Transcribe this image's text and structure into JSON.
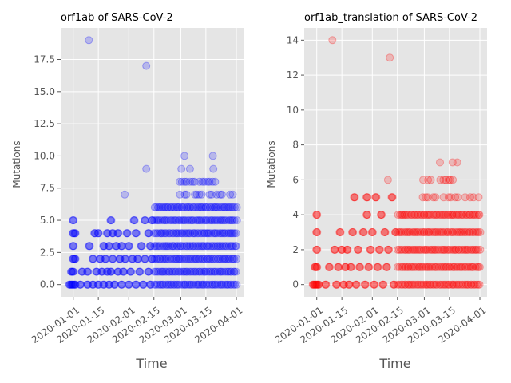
{
  "chart_data": [
    {
      "type": "scatter",
      "title": "orf1ab of SARS-CoV-2",
      "xlabel": "Time",
      "ylabel": "Mutations",
      "x_type": "date",
      "xlim": [
        "2019-12-25",
        "2020-04-05"
      ],
      "ylim": [
        -0.95,
        19.95
      ],
      "x_ticks": [
        "2020-01-01",
        "2020-01-15",
        "2020-02-01",
        "2020-02-15",
        "2020-03-01",
        "2020-03-15",
        "2020-04-01"
      ],
      "y_ticks": [
        0.0,
        2.5,
        5.0,
        7.5,
        10.0,
        12.5,
        15.0,
        17.5
      ],
      "y_tick_labels": [
        "0.0",
        "2.5",
        "5.0",
        "7.5",
        "10.0",
        "12.5",
        "15.0",
        "17.5"
      ],
      "grid": true,
      "marker_color": "#0000ff",
      "marker_alpha": 0.2,
      "points": [
        [
          "2019-12-30",
          0
        ],
        [
          "2019-12-31",
          0
        ],
        [
          "2020-01-01",
          0
        ],
        [
          "2020-01-02",
          0
        ],
        [
          "2019-12-31",
          1
        ],
        [
          "2020-01-01",
          1
        ],
        [
          "2020-01-01",
          2
        ],
        [
          "2020-01-02",
          2
        ],
        [
          "2020-01-01",
          3
        ],
        [
          "2020-01-01",
          4
        ],
        [
          "2020-01-02",
          4
        ],
        [
          "2020-01-01",
          5
        ],
        [
          "2020-01-05",
          0
        ],
        [
          "2020-01-06",
          1
        ],
        [
          "2020-01-09",
          1
        ],
        [
          "2020-01-09",
          0
        ],
        [
          "2020-01-10",
          3
        ],
        [
          "2020-01-10",
          19
        ],
        [
          "2020-01-12",
          0
        ],
        [
          "2020-01-12",
          2
        ],
        [
          "2020-01-13",
          4
        ],
        [
          "2020-01-14",
          1
        ],
        [
          "2020-01-15",
          0
        ],
        [
          "2020-01-15",
          4
        ],
        [
          "2020-01-16",
          2
        ],
        [
          "2020-01-17",
          1
        ],
        [
          "2020-01-18",
          0
        ],
        [
          "2020-01-18",
          3
        ],
        [
          "2020-01-19",
          2
        ],
        [
          "2020-01-20",
          1
        ],
        [
          "2020-01-20",
          4
        ],
        [
          "2020-01-21",
          0
        ],
        [
          "2020-01-21",
          3
        ],
        [
          "2020-01-22",
          1
        ],
        [
          "2020-01-22",
          5
        ],
        [
          "2020-01-23",
          2
        ],
        [
          "2020-01-23",
          4
        ],
        [
          "2020-01-24",
          0
        ],
        [
          "2020-01-25",
          3
        ],
        [
          "2020-01-26",
          1
        ],
        [
          "2020-01-26",
          4
        ],
        [
          "2020-01-27",
          2
        ],
        [
          "2020-01-28",
          0
        ],
        [
          "2020-01-28",
          3
        ],
        [
          "2020-01-29",
          1
        ],
        [
          "2020-01-30",
          7
        ],
        [
          "2020-01-30",
          2
        ],
        [
          "2020-01-31",
          4
        ],
        [
          "2020-02-01",
          0
        ],
        [
          "2020-02-01",
          3
        ],
        [
          "2020-02-02",
          1
        ],
        [
          "2020-02-03",
          2
        ],
        [
          "2020-02-04",
          5
        ],
        [
          "2020-02-05",
          0
        ],
        [
          "2020-02-05",
          4
        ],
        [
          "2020-02-06",
          2
        ],
        [
          "2020-02-07",
          1
        ],
        [
          "2020-02-08",
          3
        ],
        [
          "2020-02-09",
          0
        ],
        [
          "2020-02-10",
          5
        ],
        [
          "2020-02-10",
          2
        ],
        [
          "2020-02-11",
          17
        ],
        [
          "2020-02-11",
          9
        ],
        [
          "2020-02-12",
          4
        ],
        [
          "2020-02-12",
          1
        ],
        [
          "2020-02-13",
          0
        ],
        [
          "2020-02-13",
          3
        ],
        [
          "2020-02-14",
          5
        ],
        [
          "2020-02-14",
          2
        ]
      ],
      "dense_band": {
        "x_range": [
          "2020-02-15",
          "2020-04-01"
        ],
        "levels": [
          0,
          1,
          2,
          3,
          4,
          5,
          6,
          7,
          8
        ],
        "sparse_levels": [
          9,
          10
        ]
      }
    },
    {
      "type": "scatter",
      "title": "orf1ab_translation of SARS-CoV-2",
      "xlabel": "Time",
      "ylabel": "Mutations",
      "x_type": "date",
      "xlim": [
        "2019-12-25",
        "2020-04-05"
      ],
      "ylim": [
        -0.7,
        14.7
      ],
      "x_ticks": [
        "2020-01-01",
        "2020-01-15",
        "2020-02-01",
        "2020-02-15",
        "2020-03-01",
        "2020-03-15",
        "2020-04-01"
      ],
      "y_ticks": [
        0,
        2,
        4,
        6,
        8,
        10,
        12,
        14
      ],
      "y_tick_labels": [
        "0",
        "2",
        "4",
        "6",
        "8",
        "10",
        "12",
        "14"
      ],
      "grid": true,
      "marker_color": "#ff0000",
      "marker_alpha": 0.2,
      "points": [
        [
          "2019-12-30",
          0
        ],
        [
          "2019-12-31",
          0
        ],
        [
          "2020-01-01",
          0
        ],
        [
          "2020-01-02",
          0
        ],
        [
          "2019-12-31",
          1
        ],
        [
          "2020-01-01",
          1
        ],
        [
          "2020-01-01",
          2
        ],
        [
          "2020-01-01",
          3
        ],
        [
          "2020-01-01",
          4
        ],
        [
          "2020-01-06",
          0
        ],
        [
          "2020-01-08",
          1
        ],
        [
          "2020-01-10",
          14
        ],
        [
          "2020-01-11",
          2
        ],
        [
          "2020-01-12",
          0
        ],
        [
          "2020-01-13",
          1
        ],
        [
          "2020-01-14",
          3
        ],
        [
          "2020-01-15",
          2
        ],
        [
          "2020-01-16",
          0
        ],
        [
          "2020-01-17",
          1
        ],
        [
          "2020-01-18",
          2
        ],
        [
          "2020-01-19",
          0
        ],
        [
          "2020-01-20",
          1
        ],
        [
          "2020-01-21",
          3
        ],
        [
          "2020-01-22",
          5
        ],
        [
          "2020-01-23",
          0
        ],
        [
          "2020-01-24",
          2
        ],
        [
          "2020-01-25",
          1
        ],
        [
          "2020-01-27",
          3
        ],
        [
          "2020-01-28",
          0
        ],
        [
          "2020-01-29",
          4
        ],
        [
          "2020-01-29",
          5
        ],
        [
          "2020-01-30",
          1
        ],
        [
          "2020-01-31",
          2
        ],
        [
          "2020-02-01",
          3
        ],
        [
          "2020-02-02",
          0
        ],
        [
          "2020-02-03",
          5
        ],
        [
          "2020-02-04",
          1
        ],
        [
          "2020-02-05",
          2
        ],
        [
          "2020-02-06",
          4
        ],
        [
          "2020-02-07",
          0
        ],
        [
          "2020-02-08",
          3
        ],
        [
          "2020-02-09",
          1
        ],
        [
          "2020-02-10",
          6
        ],
        [
          "2020-02-10",
          2
        ],
        [
          "2020-02-11",
          13
        ],
        [
          "2020-02-12",
          5
        ],
        [
          "2020-02-13",
          0
        ],
        [
          "2020-02-14",
          3
        ]
      ],
      "dense_band": {
        "x_range": [
          "2020-02-15",
          "2020-04-01"
        ],
        "levels": [
          0,
          1,
          2,
          3,
          4,
          5,
          6
        ],
        "sparse_levels": [
          7
        ]
      }
    }
  ]
}
